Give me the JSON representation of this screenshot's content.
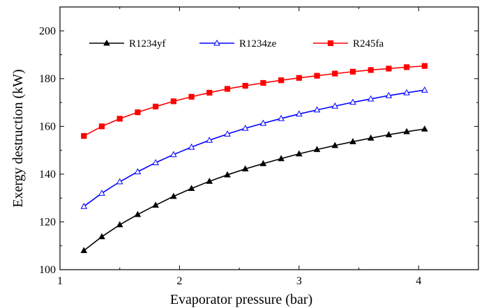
{
  "chart_data": {
    "type": "line",
    "title": "",
    "xlabel": "Evaporator pressure (bar)",
    "ylabel": "Exergy destruction (kW)",
    "xlim": [
      1,
      4.5
    ],
    "ylim": [
      100,
      210
    ],
    "xticks": [
      1,
      2,
      3,
      4
    ],
    "yticks": [
      100,
      120,
      140,
      160,
      180,
      200
    ],
    "grid": false,
    "legend_position": "top",
    "x": [
      1.2,
      1.35,
      1.5,
      1.65,
      1.8,
      1.95,
      2.1,
      2.25,
      2.4,
      2.55,
      2.7,
      2.85,
      3.0,
      3.15,
      3.3,
      3.45,
      3.6,
      3.75,
      3.9,
      4.05
    ],
    "x_values_note_free": true,
    "series": [
      {
        "name": "R1234yf",
        "color": "#000000",
        "marker": "filled-triangle",
        "values": [
          108.0,
          113.8,
          118.8,
          123.1,
          127.0,
          130.7,
          134.0,
          137.0,
          139.7,
          142.2,
          144.4,
          146.5,
          148.5,
          150.3,
          152.0,
          153.6,
          155.1,
          156.5,
          157.8,
          158.9
        ]
      },
      {
        "name": "R1234ze",
        "color": "#0000ff",
        "marker": "open-triangle",
        "values": [
          126.5,
          132.0,
          136.8,
          141.0,
          144.8,
          148.2,
          151.3,
          154.2,
          156.8,
          159.2,
          161.3,
          163.3,
          165.2,
          166.9,
          168.5,
          170.1,
          171.5,
          172.9,
          174.1,
          175.2
        ]
      },
      {
        "name": "R245fa",
        "color": "#ff0000",
        "marker": "filled-square",
        "values": [
          156.0,
          160.0,
          163.2,
          165.9,
          168.3,
          170.5,
          172.4,
          174.1,
          175.7,
          177.0,
          178.2,
          179.3,
          180.3,
          181.2,
          182.1,
          182.9,
          183.6,
          184.2,
          184.8,
          185.3
        ]
      }
    ]
  }
}
